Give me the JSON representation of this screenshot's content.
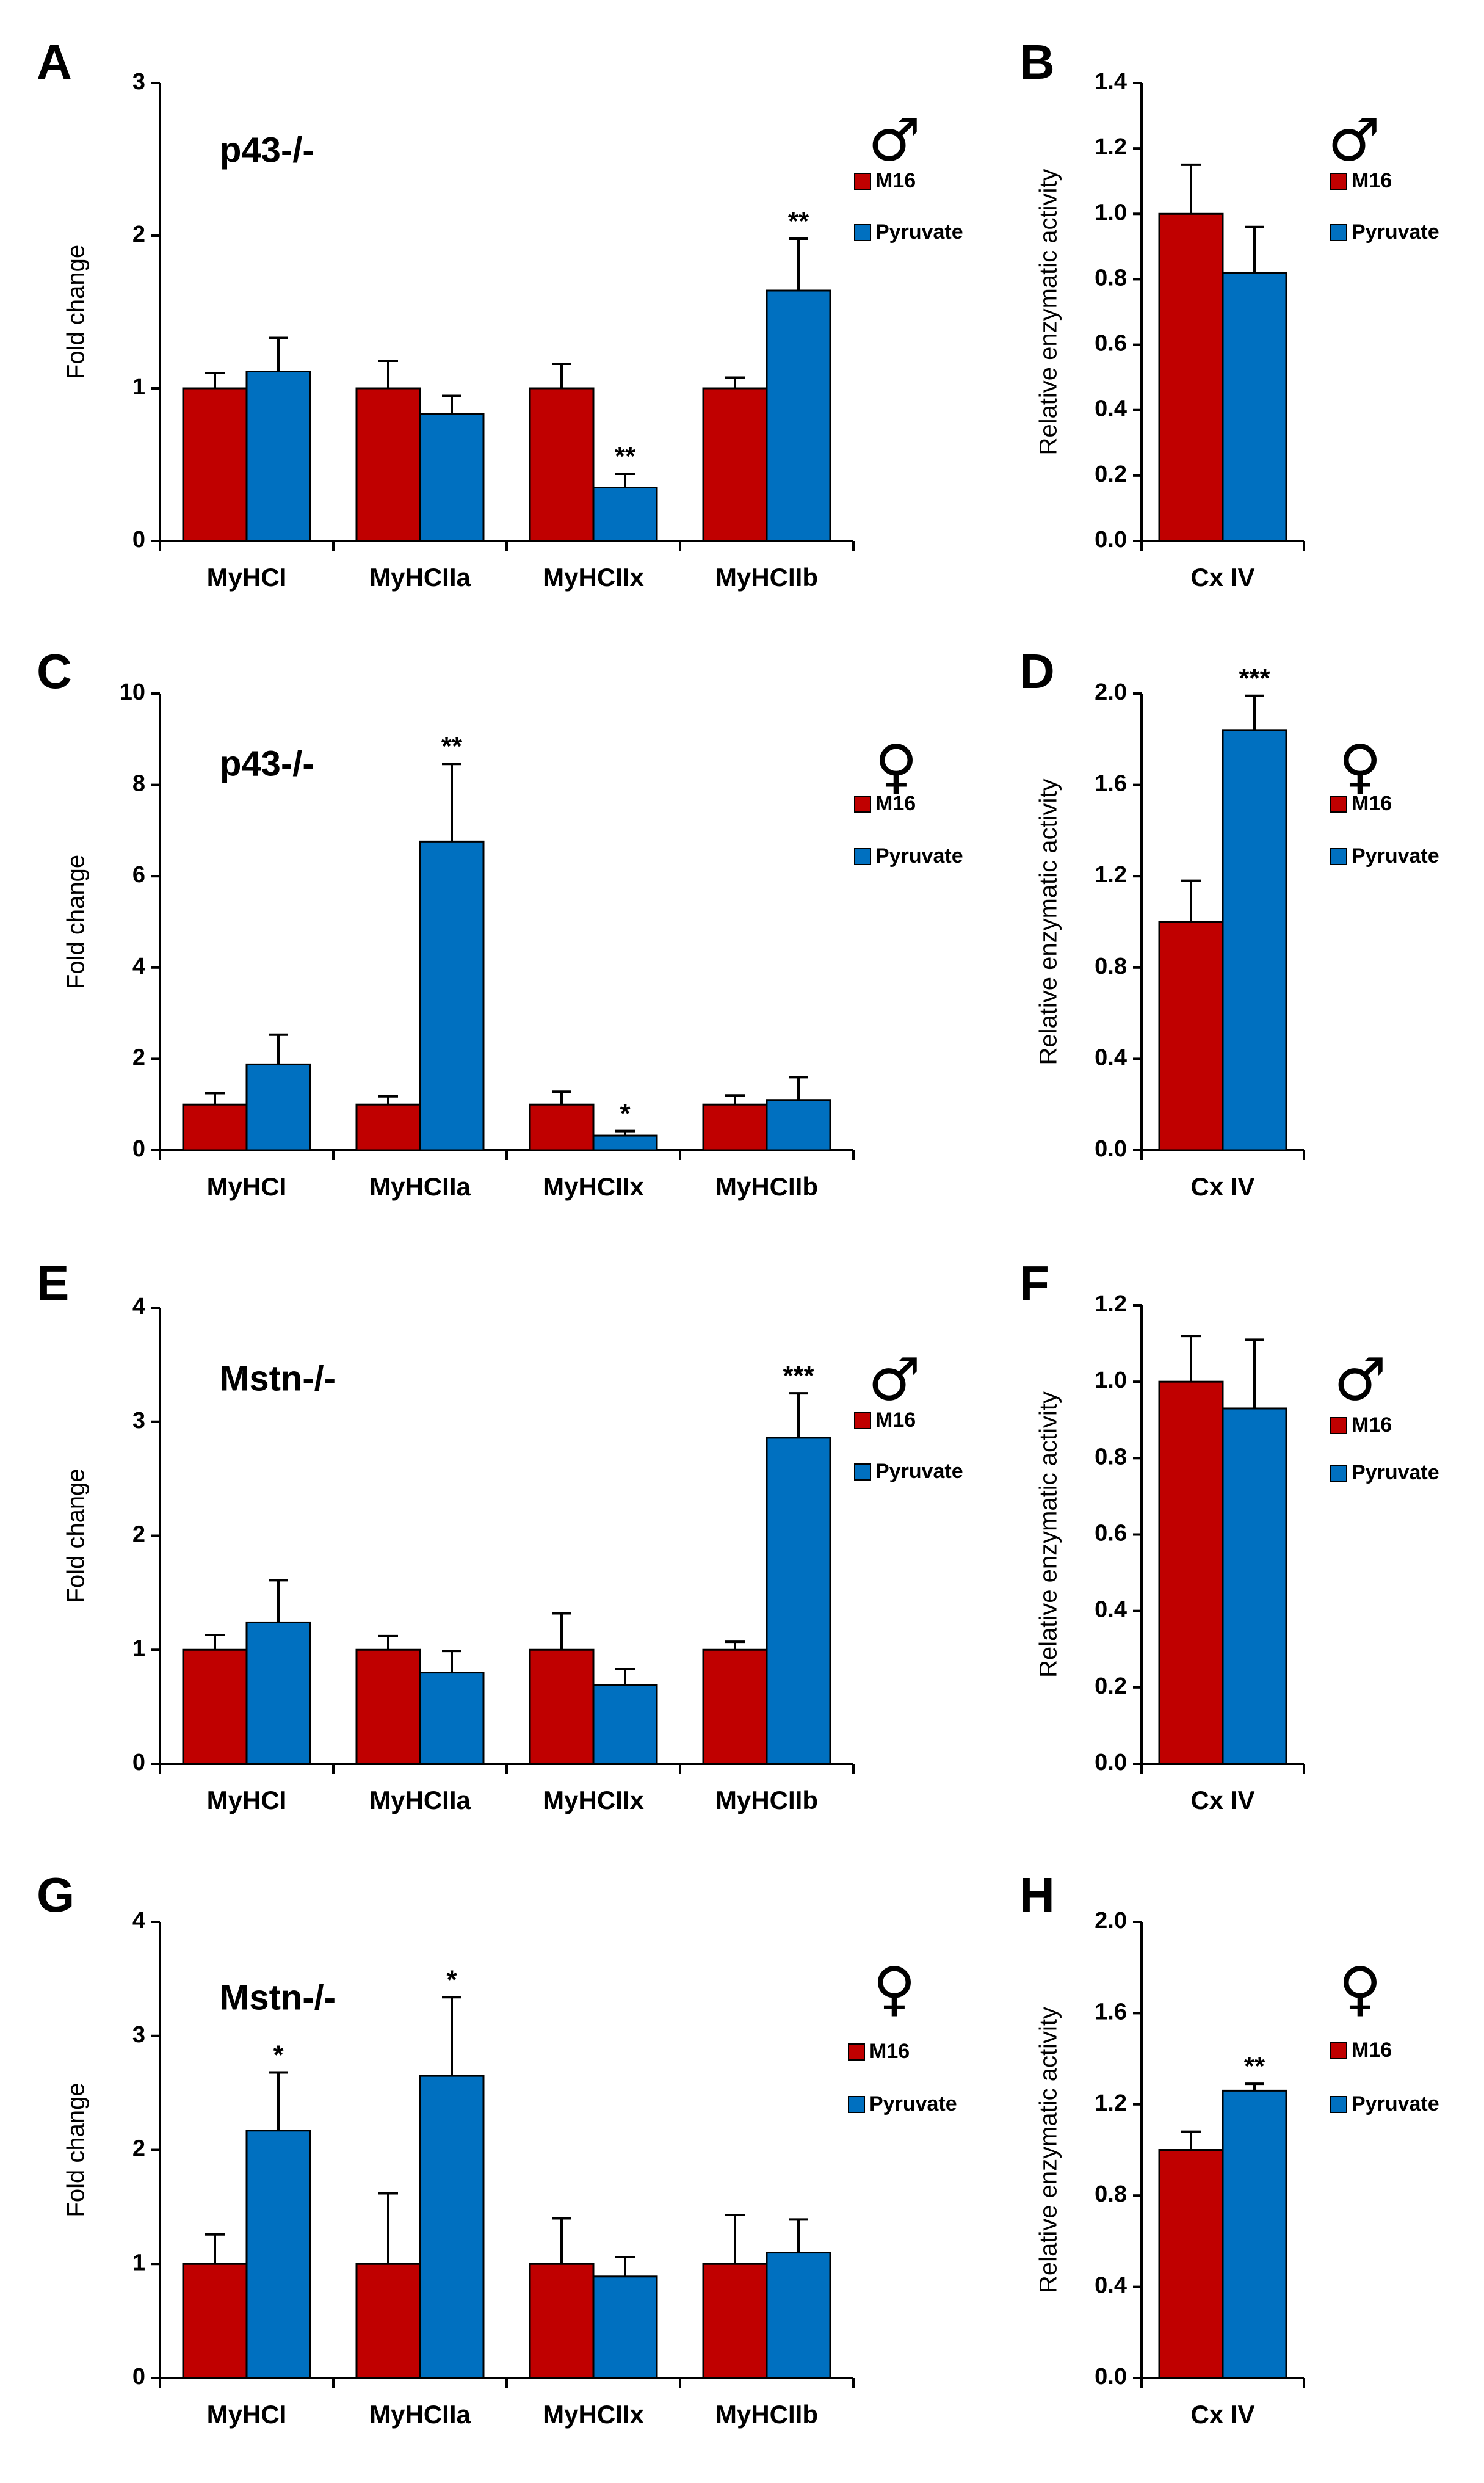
{
  "colors": {
    "m16": "#c00000",
    "pyruvate": "#0070c0"
  },
  "legend": {
    "m16": "M16",
    "pyruvate": "Pyruvate"
  },
  "chart_data": [
    {
      "panel": "A",
      "type": "bar",
      "subtitle": "p43-/-",
      "sex": "♂",
      "ylabel": "Fold change",
      "ylim": [
        0,
        3
      ],
      "yticks": [
        "0",
        "1",
        "2",
        "3"
      ],
      "ytick_values": [
        0,
        1,
        2,
        3
      ],
      "categories": [
        "MyHCI",
        "MyHCIIa",
        "MyHCIIx",
        "MyHCIIb"
      ],
      "series": [
        {
          "name": "M16",
          "values": [
            1.0,
            1.0,
            1.0,
            1.0
          ],
          "errors": [
            0.1,
            0.18,
            0.16,
            0.07
          ],
          "stars": [
            "",
            "",
            "",
            ""
          ]
        },
        {
          "name": "Pyruvate",
          "values": [
            1.11,
            0.83,
            0.35,
            1.64
          ],
          "errors": [
            0.22,
            0.12,
            0.09,
            0.34
          ],
          "stars": [
            "",
            "",
            "**",
            "**"
          ]
        }
      ]
    },
    {
      "panel": "B",
      "type": "bar",
      "sex": "♂",
      "ylabel": "Relative enzymatic activity",
      "ylim": [
        0,
        1.4
      ],
      "yticks": [
        "0.0",
        "0.2",
        "0.4",
        "0.6",
        "0.8",
        "1.0",
        "1.2",
        "1.4"
      ],
      "ytick_values": [
        0,
        0.2,
        0.4,
        0.6,
        0.8,
        1.0,
        1.2,
        1.4
      ],
      "categories": [
        "Cx IV"
      ],
      "series": [
        {
          "name": "M16",
          "values": [
            1.0
          ],
          "errors": [
            0.15
          ],
          "stars": [
            ""
          ]
        },
        {
          "name": "Pyruvate",
          "values": [
            0.82
          ],
          "errors": [
            0.14
          ],
          "stars": [
            ""
          ]
        }
      ]
    },
    {
      "panel": "C",
      "type": "bar",
      "subtitle": "p43-/-",
      "sex": "♀",
      "ylabel": "Fold change",
      "ylim": [
        0,
        10
      ],
      "yticks": [
        "0",
        "2",
        "4",
        "6",
        "8",
        "10"
      ],
      "ytick_values": [
        0,
        2,
        4,
        6,
        8,
        10
      ],
      "categories": [
        "MyHCI",
        "MyHCIIa",
        "MyHCIIx",
        "MyHCIIb"
      ],
      "series": [
        {
          "name": "M16",
          "values": [
            1.0,
            1.0,
            1.0,
            1.0
          ],
          "errors": [
            0.25,
            0.18,
            0.28,
            0.2
          ],
          "stars": [
            "",
            "",
            "",
            ""
          ]
        },
        {
          "name": "Pyruvate",
          "values": [
            1.88,
            6.76,
            0.32,
            1.1
          ],
          "errors": [
            0.65,
            1.7,
            0.1,
            0.5
          ],
          "stars": [
            "",
            "**",
            "*",
            ""
          ]
        }
      ]
    },
    {
      "panel": "D",
      "type": "bar",
      "sex": "♀",
      "ylabel": "Relative enzymatic activity",
      "ylim": [
        0,
        2.0
      ],
      "yticks": [
        "0.0",
        "0.4",
        "0.8",
        "1.2",
        "1.6",
        "2.0"
      ],
      "ytick_values": [
        0,
        0.4,
        0.8,
        1.2,
        1.6,
        2.0
      ],
      "categories": [
        "Cx IV"
      ],
      "series": [
        {
          "name": "M16",
          "values": [
            1.0
          ],
          "errors": [
            0.18
          ],
          "stars": [
            ""
          ]
        },
        {
          "name": "Pyruvate",
          "values": [
            1.84
          ],
          "errors": [
            0.15
          ],
          "stars": [
            "***"
          ]
        }
      ]
    },
    {
      "panel": "E",
      "type": "bar",
      "subtitle": "Mstn-/-",
      "sex": "♂",
      "ylabel": "Fold change",
      "ylim": [
        0,
        4
      ],
      "yticks": [
        "0",
        "1",
        "2",
        "3",
        "4"
      ],
      "ytick_values": [
        0,
        1,
        2,
        3,
        4
      ],
      "categories": [
        "MyHCI",
        "MyHCIIa",
        "MyHCIIx",
        "MyHCIIb"
      ],
      "series": [
        {
          "name": "M16",
          "values": [
            1.0,
            1.0,
            1.0,
            1.0
          ],
          "errors": [
            0.13,
            0.12,
            0.32,
            0.07
          ],
          "stars": [
            "",
            "",
            "",
            ""
          ]
        },
        {
          "name": "Pyruvate",
          "values": [
            1.24,
            0.8,
            0.69,
            2.86
          ],
          "errors": [
            0.37,
            0.19,
            0.14,
            0.39
          ],
          "stars": [
            "",
            "",
            "",
            "***"
          ]
        }
      ]
    },
    {
      "panel": "F",
      "type": "bar",
      "sex": "♂",
      "ylabel": "Relative enzymatic activity",
      "ylim": [
        0,
        1.2
      ],
      "yticks": [
        "0.0",
        "0.2",
        "0.4",
        "0.6",
        "0.8",
        "1.0",
        "1.2"
      ],
      "ytick_values": [
        0,
        0.2,
        0.4,
        0.6,
        0.8,
        1.0,
        1.2
      ],
      "categories": [
        "Cx IV"
      ],
      "series": [
        {
          "name": "M16",
          "values": [
            1.0
          ],
          "errors": [
            0.12
          ],
          "stars": [
            ""
          ]
        },
        {
          "name": "Pyruvate",
          "values": [
            0.93
          ],
          "errors": [
            0.18
          ],
          "stars": [
            ""
          ]
        }
      ]
    },
    {
      "panel": "G",
      "type": "bar",
      "subtitle": "Mstn-/-",
      "sex": "♀",
      "ylabel": "Fold change",
      "ylim": [
        0,
        4
      ],
      "yticks": [
        "0",
        "1",
        "2",
        "3",
        "4"
      ],
      "ytick_values": [
        0,
        1,
        2,
        3,
        4
      ],
      "categories": [
        "MyHCI",
        "MyHCIIa",
        "MyHCIIx",
        "MyHCIIb"
      ],
      "series": [
        {
          "name": "M16",
          "values": [
            1.0,
            1.0,
            1.0,
            1.0
          ],
          "errors": [
            0.26,
            0.62,
            0.4,
            0.43
          ],
          "stars": [
            "",
            "",
            "",
            ""
          ]
        },
        {
          "name": "Pyruvate",
          "values": [
            2.17,
            2.65,
            0.89,
            1.1
          ],
          "errors": [
            0.51,
            0.69,
            0.17,
            0.29
          ],
          "stars": [
            "*",
            "*",
            "",
            ""
          ]
        }
      ]
    },
    {
      "panel": "H",
      "type": "bar",
      "sex": "♀",
      "ylabel": "Relative enzymatic activity",
      "ylim": [
        0,
        2.0
      ],
      "yticks": [
        "0.0",
        "0.4",
        "0.8",
        "1.2",
        "1.6",
        "2.0"
      ],
      "ytick_values": [
        0,
        0.4,
        0.8,
        1.2,
        1.6,
        2.0
      ],
      "categories": [
        "Cx IV"
      ],
      "series": [
        {
          "name": "M16",
          "values": [
            1.0
          ],
          "errors": [
            0.08
          ],
          "stars": [
            ""
          ]
        },
        {
          "name": "Pyruvate",
          "values": [
            1.26
          ],
          "errors": [
            0.03
          ],
          "stars": [
            "**"
          ]
        }
      ]
    }
  ]
}
